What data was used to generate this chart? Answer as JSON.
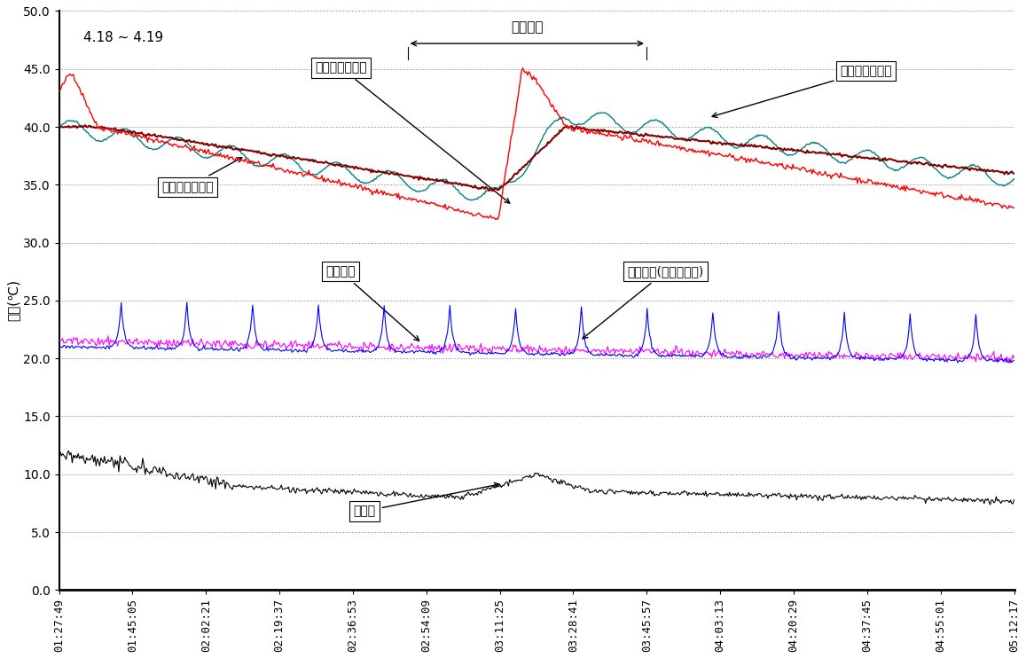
{
  "title": "4.18 ~ 4.19",
  "ylabel": "온도(℃)",
  "ylim": [
    0.0,
    50.0
  ],
  "yticks": [
    0.0,
    5.0,
    10.0,
    15.0,
    20.0,
    25.0,
    30.0,
    35.0,
    40.0,
    45.0,
    50.0
  ],
  "x_labels": [
    "01:27:49",
    "01:45:05",
    "02:02:21",
    "02:19:37",
    "02:36:53",
    "02:54:09",
    "03:11:25",
    "03:28:41",
    "03:45:57",
    "04:03:13",
    "04:20:29",
    "04:37:45",
    "04:55:01",
    "05:12:17"
  ],
  "n_points": 800,
  "colors": {
    "condenserOut": "#ff0000",
    "condenserIn": "#800000",
    "storage": "#008080",
    "indoor": "#0000ff",
    "indoorFan": "#ff00ff",
    "outdoor": "#000000"
  },
  "annotations": {
    "condenserOut_label": "응축기출구온도",
    "condenserIn_label": "응축기입구온도",
    "storage_label": "축열조내부온도",
    "indoor_label": "실내온도",
    "indoorFan_label": "실내온도(온풍난방기)",
    "outdoor_label": "외기온",
    "operation_label": "가동구간"
  },
  "background": "#ffffff"
}
